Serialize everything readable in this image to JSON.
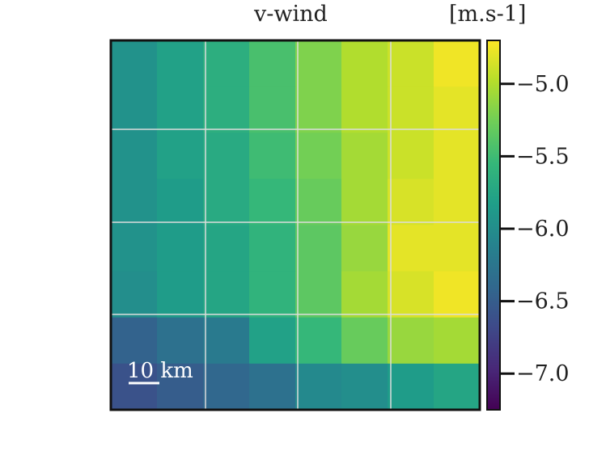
{
  "chart_data": {
    "type": "heatmap",
    "title": "v-wind",
    "units_label": "[m.s-1]",
    "scale_bar": {
      "label": "10 km"
    },
    "colormap": "viridis",
    "vmin": -7.25,
    "vmax": -4.7,
    "colorbar_ticks": [
      -5.0,
      -5.5,
      -6.0,
      -6.5,
      -7.0
    ],
    "colorbar_tick_labels": [
      "−5.0",
      "−5.5",
      "−6.0",
      "−6.5",
      "−7.0"
    ],
    "grid": true,
    "columns": 8,
    "rows": 8,
    "values": [
      [
        -5.95,
        -5.8,
        -5.65,
        -5.45,
        -5.2,
        -5.0,
        -4.9,
        -4.75
      ],
      [
        -5.95,
        -5.8,
        -5.65,
        -5.45,
        -5.2,
        -5.0,
        -4.9,
        -4.8
      ],
      [
        -5.95,
        -5.8,
        -5.7,
        -5.5,
        -5.25,
        -5.05,
        -4.9,
        -4.8
      ],
      [
        -5.95,
        -5.85,
        -5.7,
        -5.55,
        -5.3,
        -5.05,
        -4.85,
        -4.8
      ],
      [
        -5.95,
        -5.85,
        -5.75,
        -5.6,
        -5.35,
        -5.1,
        -4.8,
        -4.8
      ],
      [
        -6.0,
        -5.85,
        -5.75,
        -5.6,
        -5.35,
        -5.05,
        -4.85,
        -4.75
      ],
      [
        -6.45,
        -6.3,
        -6.2,
        -5.8,
        -5.55,
        -5.3,
        -5.1,
        -5.05
      ],
      [
        -6.6,
        -6.5,
        -6.4,
        -6.3,
        -6.05,
        -6.0,
        -5.85,
        -5.75
      ]
    ]
  }
}
